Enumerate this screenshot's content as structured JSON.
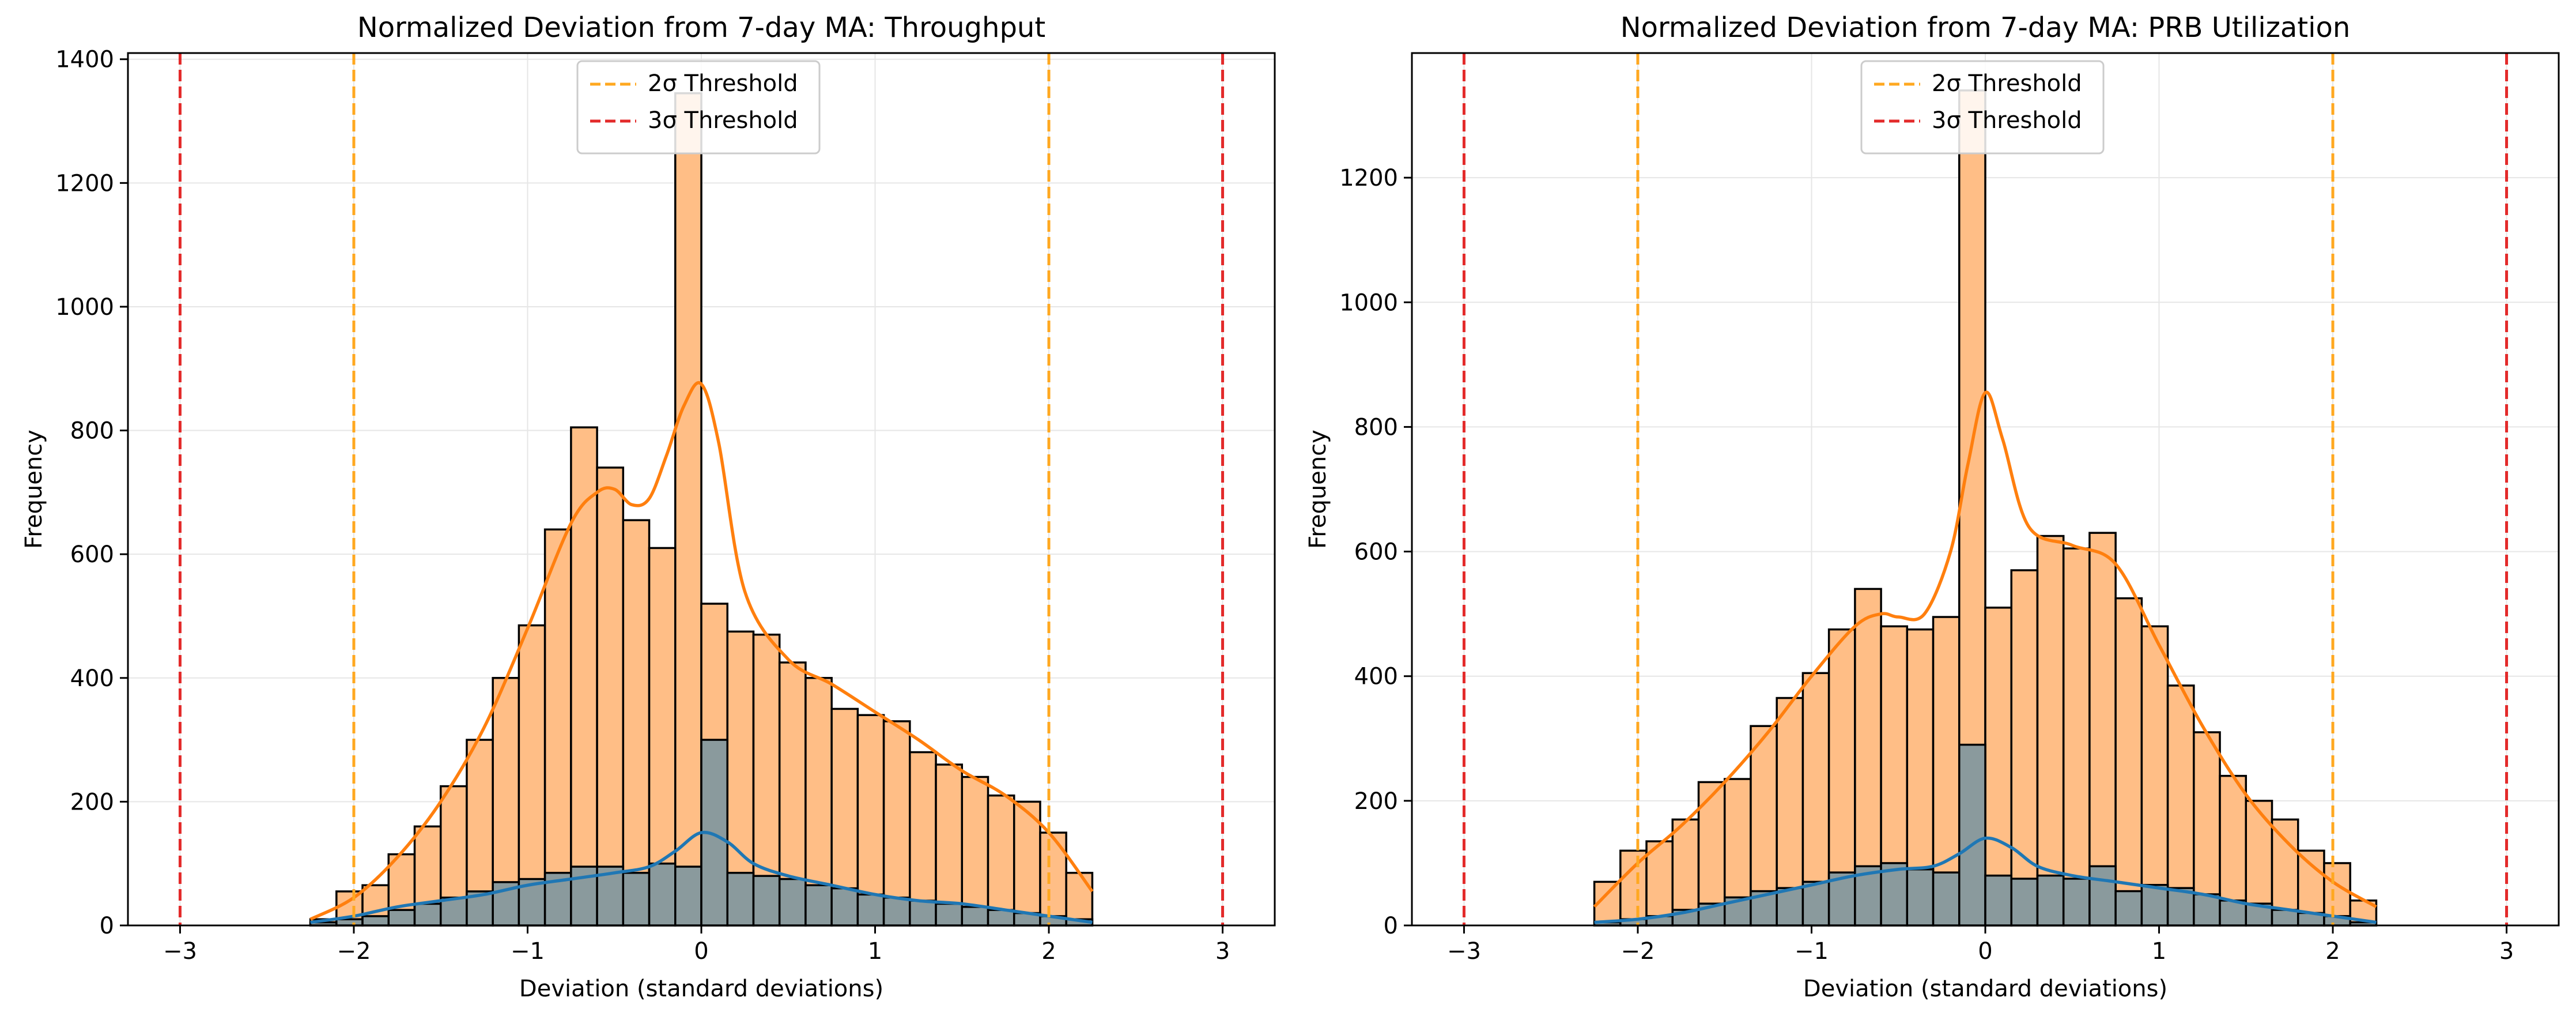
{
  "colors": {
    "orange_fill": "#ffbe86",
    "orange_line": "#ff7f0e",
    "gray_fill": "#8a9a9d",
    "blue_line": "#1f77b4",
    "threshold_2sigma": "#ffa820",
    "threshold_3sigma": "#e32a2a",
    "grid": "#e6e6e6"
  },
  "chart_data": [
    {
      "type": "bar",
      "title": "Normalized Deviation from 7-day MA: Throughput",
      "xlabel": "Deviation (standard deviations)",
      "ylabel": "Frequency",
      "xlim": [
        -3.3,
        3.3
      ],
      "ylim": [
        0,
        1410
      ],
      "xticks": [
        -3,
        -2,
        -1,
        0,
        1,
        2,
        3
      ],
      "xtick_labels": [
        "−3",
        "−2",
        "−1",
        "0",
        "1",
        "2",
        "3"
      ],
      "yticks": [
        0,
        200,
        400,
        600,
        800,
        1000,
        1200,
        1400
      ],
      "grid": true,
      "legend_position": "upper-center",
      "legend": [
        {
          "label": "2σ Threshold",
          "color": "#ffa820"
        },
        {
          "label": "3σ Threshold",
          "color": "#e32a2a"
        }
      ],
      "thresholds": [
        -3,
        -2,
        2,
        3
      ],
      "bin_edges": [
        -2.25,
        -2.1,
        -1.95,
        -1.8,
        -1.65,
        -1.5,
        -1.35,
        -1.2,
        -1.05,
        -0.9,
        -0.75,
        -0.6,
        -0.45,
        -0.3,
        -0.15,
        0,
        0.15,
        0.3,
        0.45,
        0.6,
        0.75,
        0.9,
        1.05,
        1.2,
        1.35,
        1.5,
        1.65,
        1.8,
        1.95,
        2.1,
        2.25
      ],
      "series": [
        {
          "values": [
            10,
            55,
            65,
            115,
            160,
            225,
            300,
            400,
            485,
            640,
            805,
            740,
            655,
            610,
            1345,
            520,
            475,
            470,
            425,
            400,
            350,
            340,
            330,
            280,
            260,
            240,
            210,
            200,
            150,
            85
          ],
          "kde_x": [
            -2.25,
            -2.0,
            -1.75,
            -1.5,
            -1.25,
            -1.0,
            -0.75,
            -0.6,
            -0.5,
            -0.4,
            -0.3,
            -0.2,
            -0.1,
            0,
            0.1,
            0.25,
            0.5,
            0.75,
            1.0,
            1.25,
            1.5,
            1.75,
            2.0,
            2.25
          ],
          "kde_y": [
            10,
            45,
            110,
            200,
            320,
            480,
            650,
            700,
            705,
            680,
            690,
            760,
            840,
            875,
            780,
            540,
            430,
            390,
            345,
            300,
            250,
            210,
            150,
            55
          ]
        },
        {
          "values": [
            5,
            10,
            15,
            25,
            35,
            45,
            55,
            70,
            75,
            85,
            95,
            95,
            85,
            100,
            95,
            300,
            85,
            80,
            75,
            65,
            60,
            50,
            45,
            40,
            35,
            30,
            25,
            20,
            15,
            10
          ],
          "kde_x": [
            -2.25,
            -2.0,
            -1.75,
            -1.5,
            -1.25,
            -1.0,
            -0.75,
            -0.5,
            -0.3,
            -0.15,
            0,
            0.15,
            0.3,
            0.5,
            0.75,
            1.0,
            1.25,
            1.5,
            1.75,
            2.0,
            2.25
          ],
          "kde_y": [
            5,
            15,
            30,
            40,
            50,
            65,
            75,
            85,
            95,
            120,
            150,
            135,
            100,
            80,
            65,
            50,
            40,
            35,
            25,
            15,
            5
          ]
        }
      ]
    },
    {
      "type": "bar",
      "title": "Normalized Deviation from 7-day MA: PRB Utilization",
      "xlabel": "Deviation (standard deviations)",
      "ylabel": "Frequency",
      "xlim": [
        -3.3,
        3.3
      ],
      "ylim": [
        0,
        1400
      ],
      "xticks": [
        -3,
        -2,
        -1,
        0,
        1,
        2,
        3
      ],
      "xtick_labels": [
        "−3",
        "−2",
        "−1",
        "0",
        "1",
        "2",
        "3"
      ],
      "yticks": [
        0,
        200,
        400,
        600,
        800,
        1000,
        1200
      ],
      "grid": true,
      "legend_position": "upper-center",
      "legend": [
        {
          "label": "2σ Threshold",
          "color": "#ffa820"
        },
        {
          "label": "3σ Threshold",
          "color": "#e32a2a"
        }
      ],
      "thresholds": [
        -3,
        -2,
        2,
        3
      ],
      "bin_edges": [
        -2.25,
        -2.1,
        -1.95,
        -1.8,
        -1.65,
        -1.5,
        -1.35,
        -1.2,
        -1.05,
        -0.9,
        -0.75,
        -0.6,
        -0.45,
        -0.3,
        -0.15,
        0,
        0.15,
        0.3,
        0.45,
        0.6,
        0.75,
        0.9,
        1.05,
        1.2,
        1.35,
        1.5,
        1.65,
        1.8,
        1.95,
        2.1,
        2.25
      ],
      "series": [
        {
          "values": [
            70,
            120,
            135,
            170,
            230,
            235,
            320,
            365,
            405,
            475,
            540,
            480,
            475,
            495,
            1340,
            510,
            570,
            625,
            605,
            630,
            525,
            480,
            385,
            310,
            240,
            200,
            170,
            120,
            100,
            40
          ],
          "kde_x": [
            -2.25,
            -2.0,
            -1.75,
            -1.5,
            -1.25,
            -1.0,
            -0.75,
            -0.6,
            -0.5,
            -0.35,
            -0.2,
            -0.1,
            0,
            0.1,
            0.25,
            0.5,
            0.75,
            1.0,
            1.25,
            1.5,
            1.75,
            2.0,
            2.25
          ],
          "kde_y": [
            30,
            100,
            160,
            230,
            310,
            400,
            480,
            500,
            495,
            500,
            600,
            740,
            855,
            780,
            640,
            610,
            580,
            450,
            320,
            210,
            130,
            70,
            30
          ]
        },
        {
          "values": [
            5,
            10,
            15,
            25,
            35,
            45,
            55,
            60,
            70,
            85,
            95,
            100,
            90,
            85,
            290,
            80,
            75,
            80,
            75,
            95,
            55,
            65,
            60,
            50,
            40,
            35,
            25,
            20,
            15,
            5
          ],
          "kde_x": [
            -2.25,
            -2.0,
            -1.75,
            -1.5,
            -1.25,
            -1.0,
            -0.75,
            -0.5,
            -0.3,
            -0.15,
            0,
            0.15,
            0.3,
            0.5,
            0.75,
            1.0,
            1.25,
            1.5,
            1.75,
            2.0,
            2.25
          ],
          "kde_y": [
            5,
            10,
            20,
            35,
            50,
            65,
            80,
            90,
            95,
            115,
            140,
            125,
            95,
            80,
            70,
            60,
            50,
            35,
            25,
            15,
            5
          ]
        }
      ]
    }
  ]
}
